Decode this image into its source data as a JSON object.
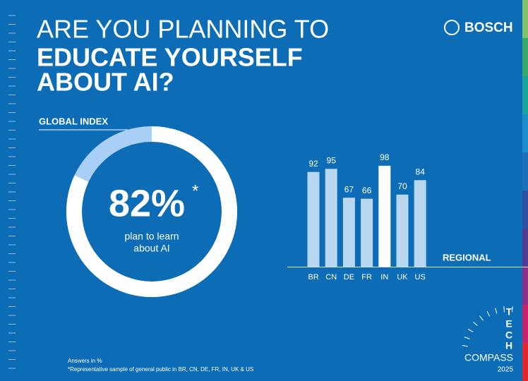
{
  "title": [
    "ARE YOU PLANNING TO",
    "EDUCATE YOURSELF",
    "ABOUT AI?"
  ],
  "brand": "BOSCH",
  "chart_data": [
    {
      "type": "donut",
      "title": "GLOBAL INDEX",
      "values": [
        82
      ],
      "value_labels": [
        "82%"
      ],
      "footnote_mark": "*",
      "caption": [
        "plan to learn",
        "about AI"
      ],
      "color": "#ffffff",
      "track_color": "#a9cff7"
    },
    {
      "type": "bar",
      "title": "REGIONAL",
      "categories": [
        "BR",
        "CN",
        "DE",
        "FR",
        "IN",
        "UK",
        "US"
      ],
      "values": [
        92,
        95,
        67,
        66,
        98,
        70,
        84
      ],
      "colors": [
        "#b8d7f0",
        "#b8d7f0",
        "#b8d7f0",
        "#b8d7f0",
        "#ffffff",
        "#b8d7f0",
        "#b8d7f0"
      ]
    }
  ],
  "notes": [
    "Answers in %",
    "*Representative sample of general public in BR, CN, DE, FR, IN, UK & US"
  ],
  "badge": {
    "letters": [
      "T",
      "E",
      "C",
      "H"
    ],
    "name": "COMPASS",
    "year": "2025"
  }
}
